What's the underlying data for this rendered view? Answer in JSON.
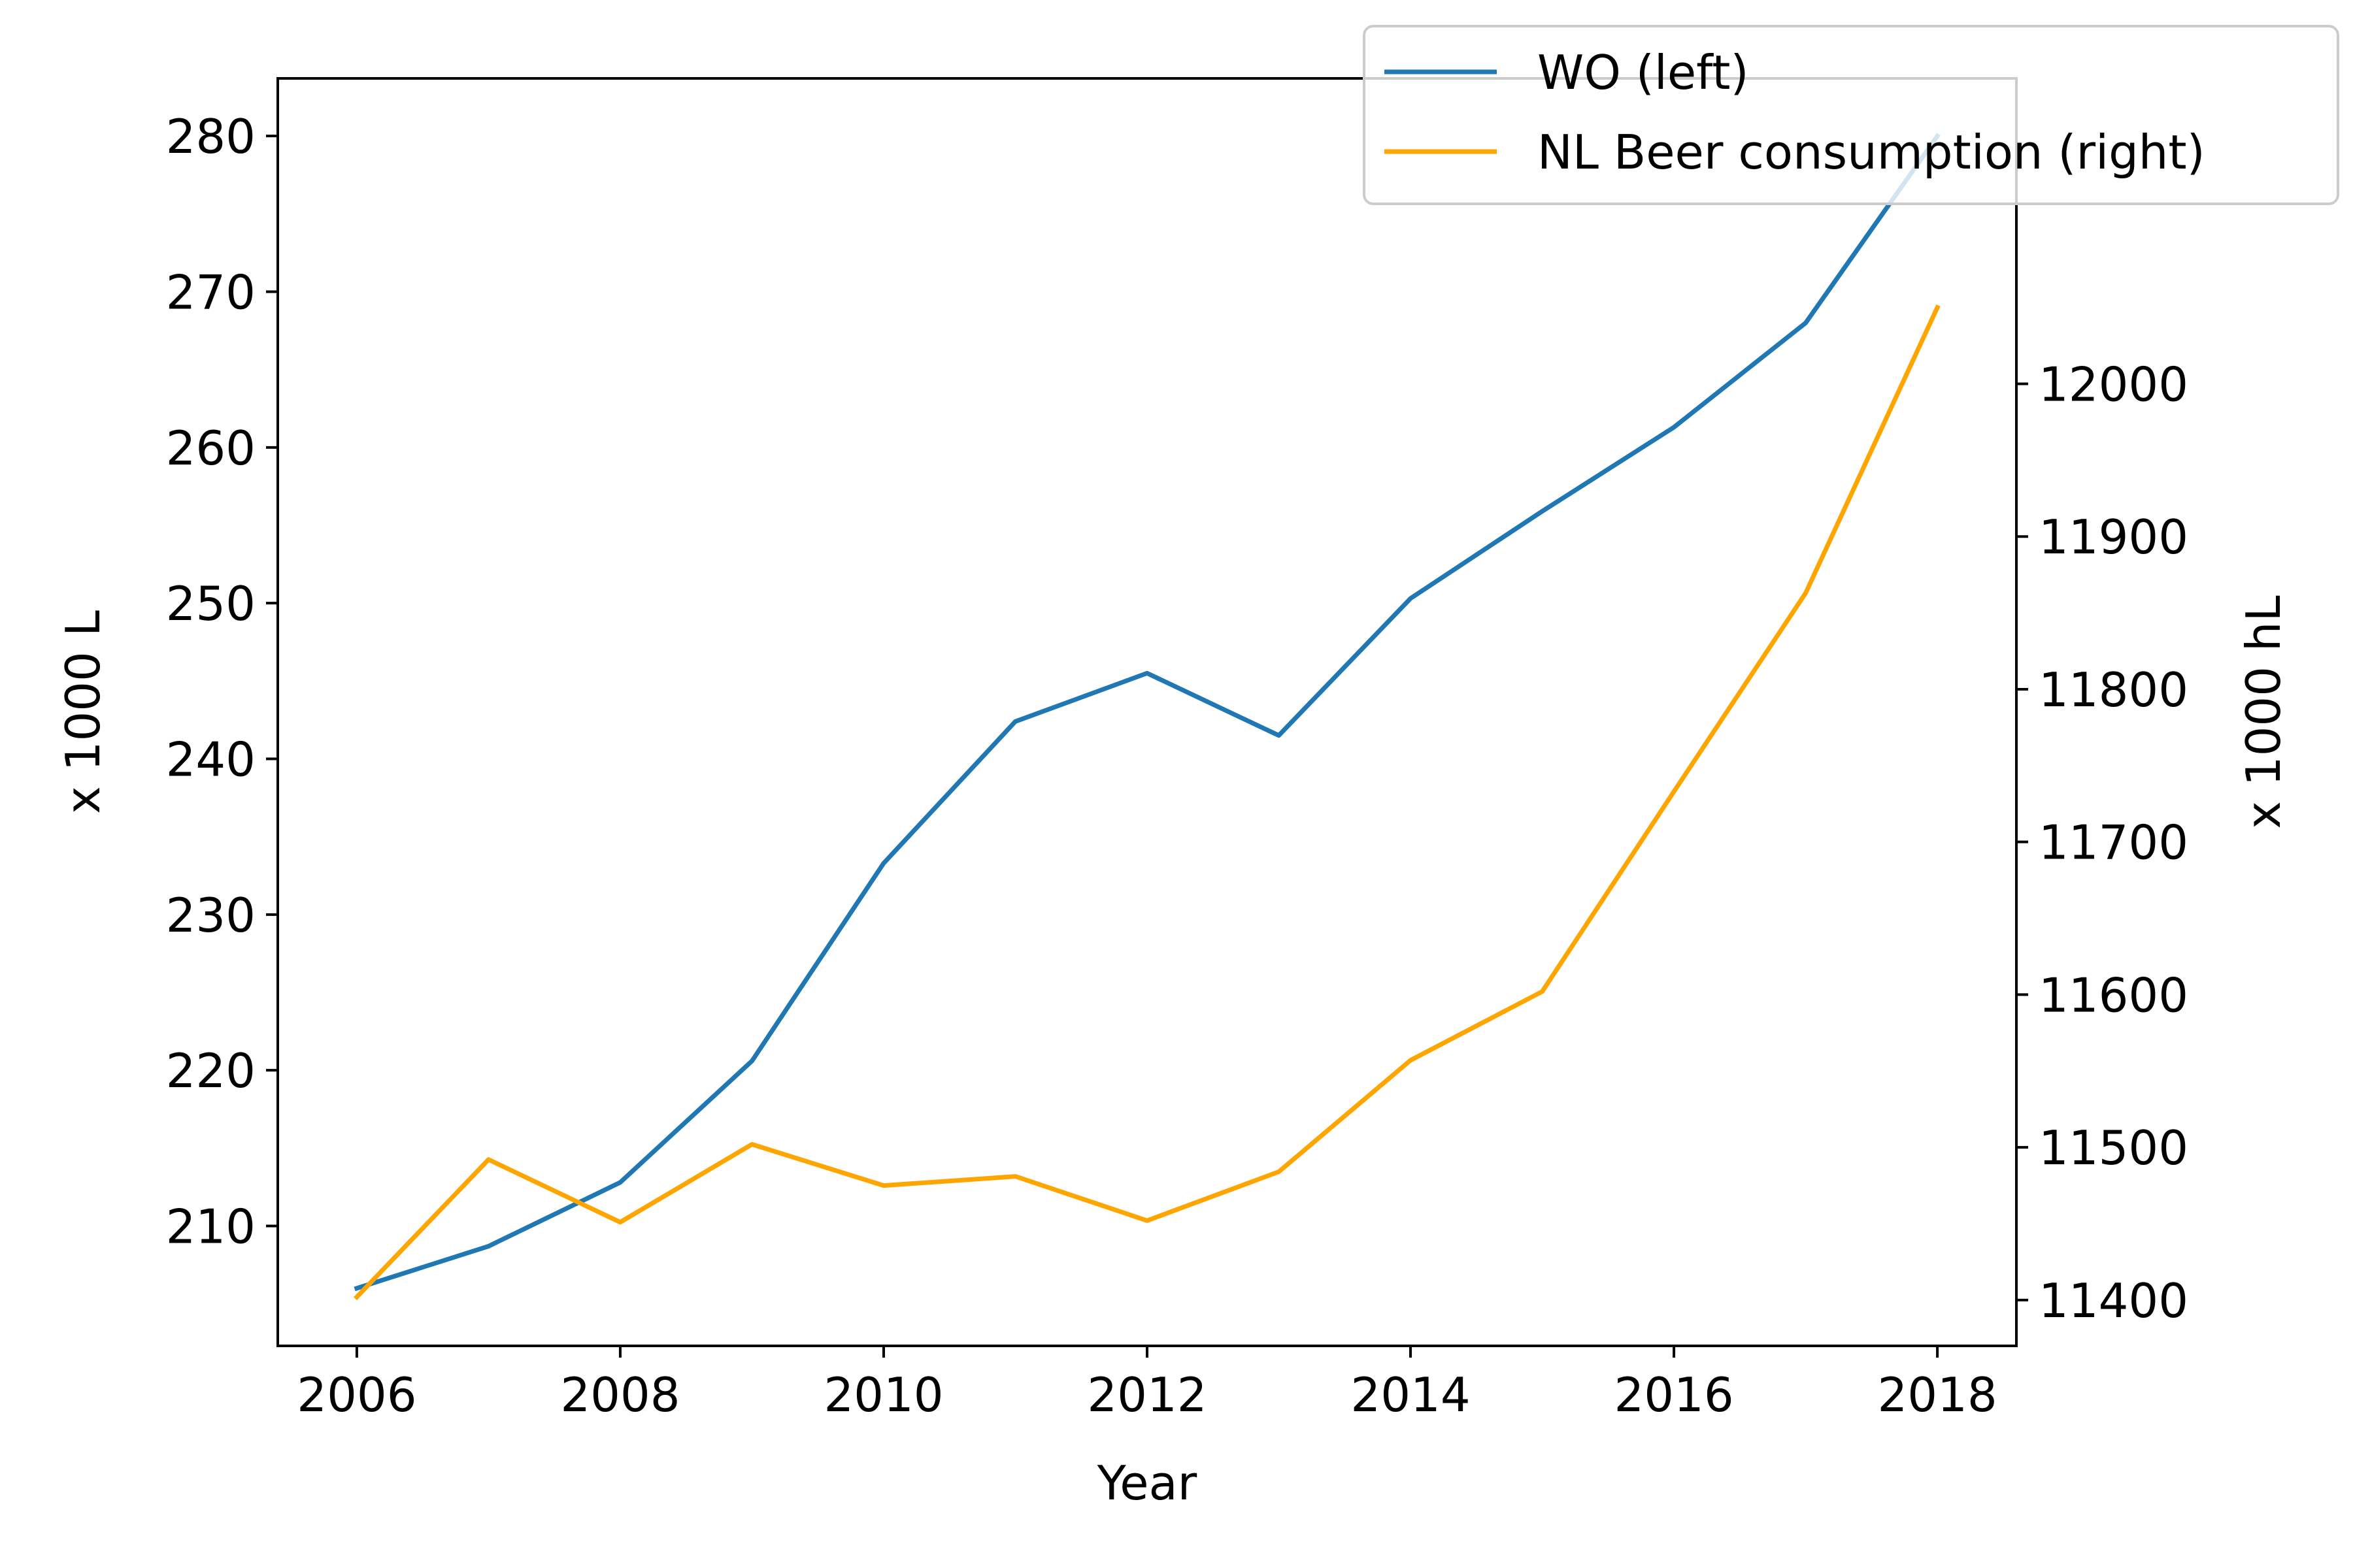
{
  "chart_data": {
    "type": "line",
    "title": "",
    "xlabel": "Year",
    "ylabel_left": "x 1000 L",
    "ylabel_right": "x 1000 hL",
    "x": [
      2006,
      2007,
      2008,
      2009,
      2010,
      2011,
      2012,
      2013,
      2014,
      2015,
      2016,
      2017,
      2018
    ],
    "x_ticks": [
      "2006",
      "2008",
      "2010",
      "2012",
      "2014",
      "2016",
      "2018"
    ],
    "xlim": [
      2005.4,
      2018.6
    ],
    "ylim_left": [
      202.3,
      283.7
    ],
    "ylim_right": [
      11370,
      12200
    ],
    "y_ticks_left": [
      "210",
      "220",
      "230",
      "240",
      "250",
      "260",
      "270",
      "280"
    ],
    "y_ticks_right": [
      "11400",
      "11500",
      "11600",
      "11700",
      "11800",
      "11900",
      "12000"
    ],
    "grid": false,
    "legend_position": "top-right",
    "series": [
      {
        "name": "WO (left)",
        "axis": "left",
        "color": "#1f77b4",
        "values": [
          206.0,
          208.7,
          212.8,
          220.6,
          233.3,
          242.4,
          245.5,
          241.5,
          250.3,
          255.9,
          261.3,
          268.0,
          280.0
        ]
      },
      {
        "name": "NL Beer consumption (right)",
        "axis": "right",
        "color": "#ffa500",
        "values": [
          11402,
          11492,
          11451,
          11502,
          11475,
          11481,
          11452,
          11484,
          11557,
          11602,
          11733,
          11863,
          12050
        ]
      }
    ]
  }
}
